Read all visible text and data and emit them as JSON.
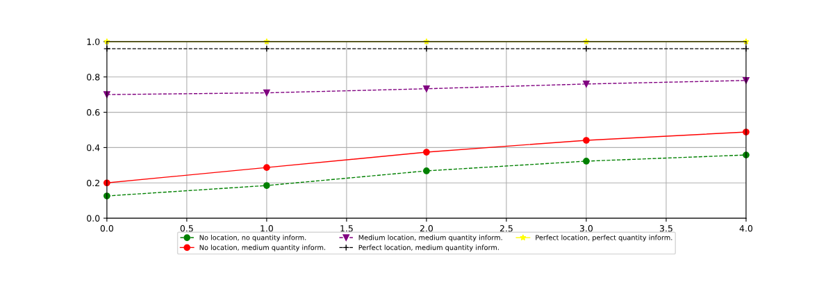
{
  "chart_data": {
    "type": "line",
    "x": [
      0,
      1,
      2,
      3,
      4
    ],
    "series": [
      {
        "name": "No location, no quantity inform.",
        "color": "#008000",
        "marker": "circle",
        "line_style": "dashed",
        "values": [
          0.126,
          0.185,
          0.268,
          0.323,
          0.358
        ]
      },
      {
        "name": "No location, medium quantity inform.",
        "color": "#ff0000",
        "marker": "circle",
        "line_style": "solid",
        "values": [
          0.2,
          0.287,
          0.374,
          0.441,
          0.488
        ]
      },
      {
        "name": "Medium location, medium quantity inform.",
        "color": "#800080",
        "marker": "triangle",
        "line_style": "dashed",
        "values": [
          0.7,
          0.71,
          0.733,
          0.76,
          0.78
        ]
      },
      {
        "name": "Perfect location, medium quantity inform.",
        "color": "#000000",
        "marker": "cross",
        "line_style": "dashed",
        "values": [
          0.96,
          0.96,
          0.96,
          0.96,
          0.96
        ]
      },
      {
        "name": "Perfect location, perfect quantity inform.",
        "color": "#ffff00",
        "marker": "star",
        "line_style": "solid",
        "values": [
          1.0,
          1.0,
          1.0,
          1.0,
          1.0
        ]
      }
    ],
    "xlim": [
      0,
      4
    ],
    "xticks": [
      {
        "value": 0,
        "label": "0.0"
      },
      {
        "value": 0.5,
        "label": "0.5"
      },
      {
        "value": 1,
        "label": "1.0"
      },
      {
        "value": 1.5,
        "label": "1.5"
      },
      {
        "value": 2,
        "label": "2.0"
      },
      {
        "value": 2.5,
        "label": "2.5"
      },
      {
        "value": 3,
        "label": "3.0"
      },
      {
        "value": 3.5,
        "label": "3.5"
      },
      {
        "value": 4,
        "label": "4.0"
      }
    ],
    "ylim": [
      0,
      1
    ],
    "yticks": [
      {
        "value": 0,
        "label": "0.0"
      },
      {
        "value": 0.2,
        "label": "0.2"
      },
      {
        "value": 0.4,
        "label": "0.4"
      },
      {
        "value": 0.6,
        "label": "0.6"
      },
      {
        "value": 0.8,
        "label": "0.8"
      },
      {
        "value": 1,
        "label": "1.0"
      }
    ],
    "grid": true,
    "legend": "bottom"
  }
}
